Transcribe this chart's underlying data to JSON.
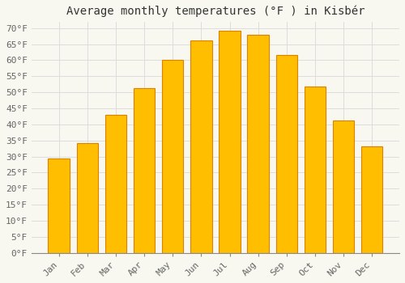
{
  "title": "Average monthly temperatures (°F ) in Kisbér",
  "months": [
    "Jan",
    "Feb",
    "Mar",
    "Apr",
    "May",
    "Jun",
    "Jul",
    "Aug",
    "Sep",
    "Oct",
    "Nov",
    "Dec"
  ],
  "values": [
    29.3,
    34.2,
    43.0,
    51.3,
    60.1,
    66.2,
    69.1,
    67.8,
    61.7,
    51.8,
    41.2,
    33.1
  ],
  "bar_color": "#FFBE00",
  "bar_edge_color": "#E08000",
  "background_color": "#F8F8F0",
  "plot_bg_color": "#F8F8F0",
  "grid_color": "#DDDDDD",
  "ylim": [
    0,
    72
  ],
  "ytick_step": 5,
  "title_fontsize": 10,
  "tick_fontsize": 8,
  "tick_color": "#666666",
  "bar_width": 0.75
}
